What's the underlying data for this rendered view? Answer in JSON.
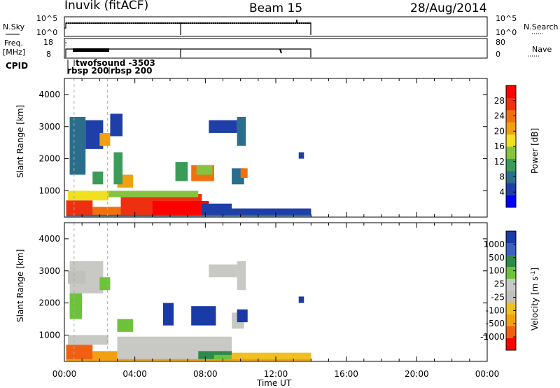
{
  "header": {
    "station": "Inuvik (fitACF)",
    "beam": "Beam 15",
    "date": "28/Aug/2014"
  },
  "aux_panels": {
    "nsky_label": "N.Sky",
    "nsky_ticks": [
      "10^5",
      "10^0"
    ],
    "nsearch_label": "N.Search",
    "nsearch_ticks": [
      "10^5",
      "10^0"
    ],
    "freq_label_1": "Freq.",
    "freq_label_2": "[MHz]",
    "freq_ticks": [
      "18",
      "8"
    ],
    "nave_label": "Nave",
    "nave_ticks": [
      "80",
      "0"
    ],
    "cpid_label": "CPID",
    "cpid_entries": [
      "twofsound -3503",
      "rbsp 200",
      "rbsp 200"
    ]
  },
  "colors": {
    "power_scale": [
      "#0000ff",
      "#1f3fa8",
      "#2a6e8c",
      "#3d9b5a",
      "#86c440",
      "#f0e020",
      "#f0a010",
      "#f07010",
      "#ee3010",
      "#ff0000"
    ],
    "velocity_scale": [
      "#1a3aa8",
      "#3a60c0",
      "#2f8a4a",
      "#6ec23a",
      "#c8c8c4",
      "#c0c0bc",
      "#f0c020",
      "#f0a010",
      "#f06010",
      "#ff0000"
    ]
  },
  "chart_data": [
    {
      "type": "heatmap",
      "title": "Power",
      "xlabel": "Time UT",
      "ylabel": "Slant Range [km]",
      "colorbar_label": "Power [dB]",
      "x_ticks": [
        "00:00",
        "04:00",
        "08:00",
        "12:00",
        "16:00",
        "20:00",
        "00:00"
      ],
      "x_range_hours": [
        0,
        24
      ],
      "y_ticks": [
        1000,
        2000,
        3000,
        4000
      ],
      "y_range_km": [
        180,
        4500
      ],
      "colorbar_ticks": [
        4,
        8,
        12,
        16,
        20,
        24,
        28
      ],
      "colorbar_range": [
        0,
        32
      ],
      "data_coverage_hours": [
        0,
        14
      ]
    },
    {
      "type": "heatmap",
      "title": "Velocity",
      "xlabel": "Time UT",
      "ylabel": "Slant Range [km]",
      "colorbar_label": "Velocity [m s^-1]",
      "x_ticks": [
        "00:00",
        "04:00",
        "08:00",
        "12:00",
        "16:00",
        "20:00",
        "00:00"
      ],
      "x_range_hours": [
        0,
        24
      ],
      "y_ticks": [
        1000,
        2000,
        3000,
        4000
      ],
      "y_range_km": [
        180,
        4500
      ],
      "colorbar_ticks": [
        "1000",
        "500",
        "100",
        "25",
        "-25",
        "-100",
        "-500",
        "-1000"
      ],
      "data_coverage_hours": [
        0,
        14
      ]
    }
  ],
  "axis_title": "Time UT",
  "velocity_unit_base": "Velocity [m s",
  "velocity_unit_exp": "-1",
  "velocity_unit_end": "]"
}
